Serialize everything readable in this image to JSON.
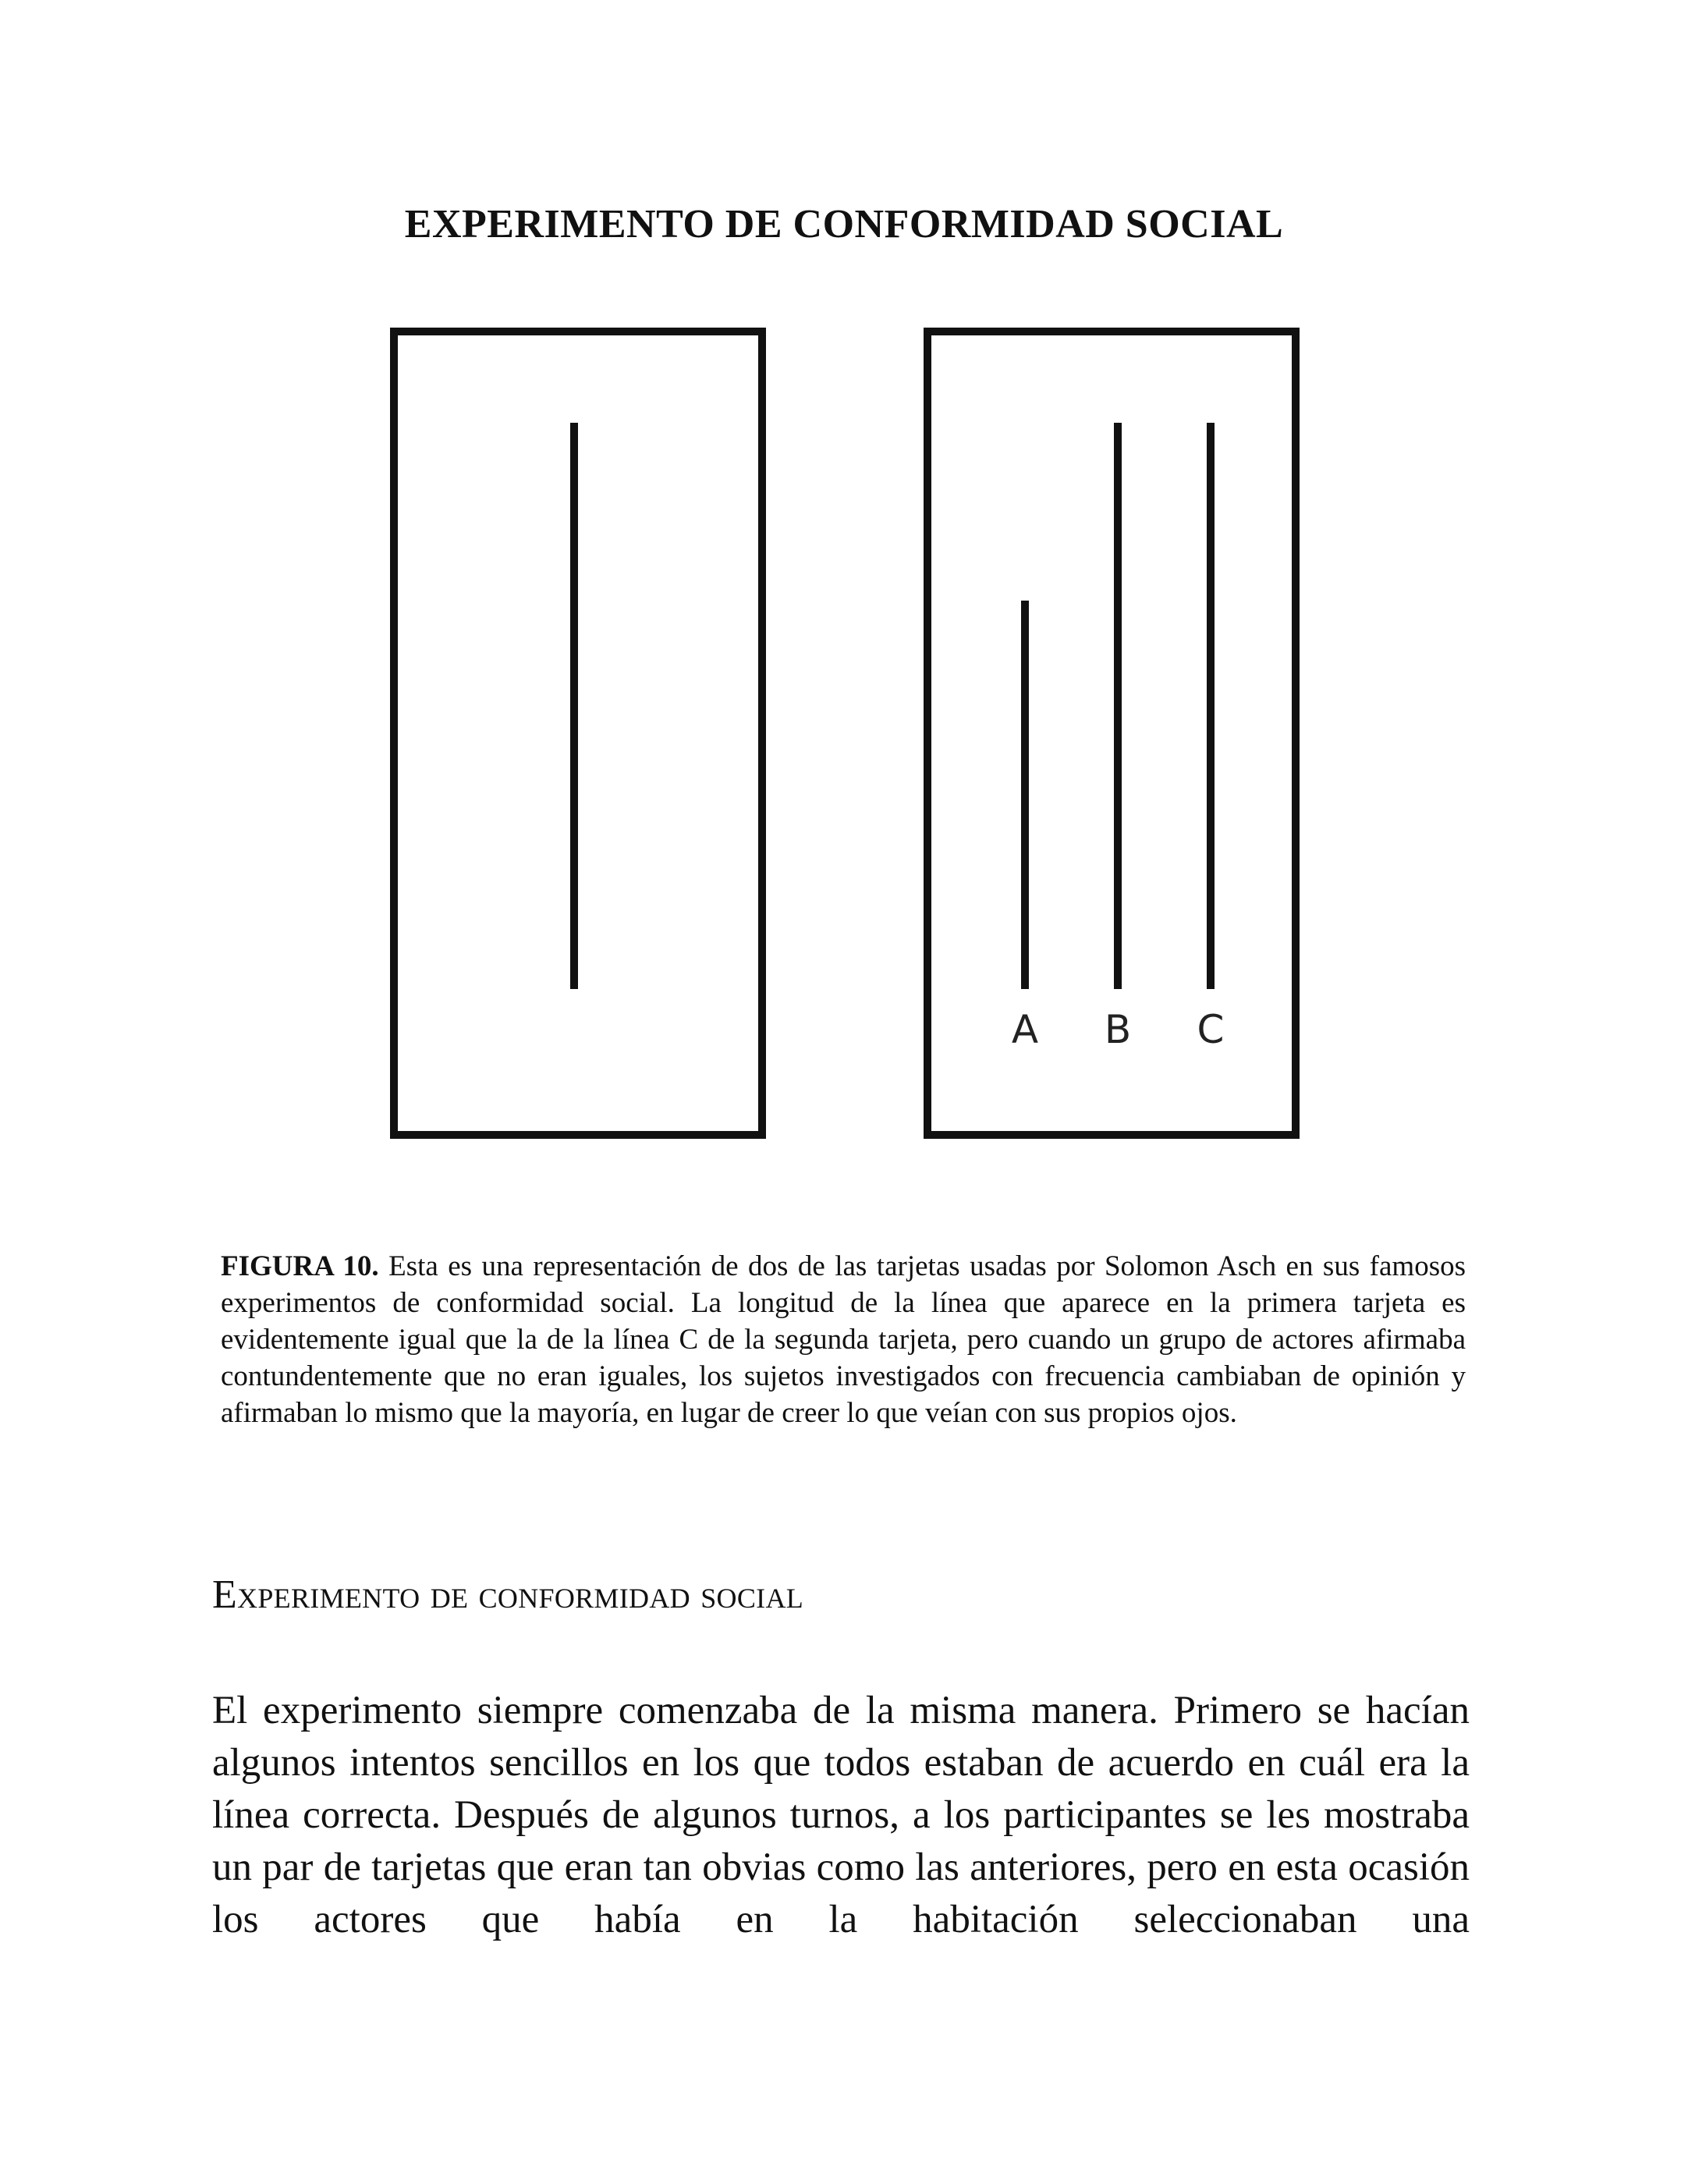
{
  "page": {
    "title": "EXPERIMENTO DE CONFORMIDAD SOCIAL"
  },
  "figure": {
    "line_labels": {
      "a": "A",
      "b": "B",
      "c": "C"
    }
  },
  "caption": {
    "label": "FIGURA 10.",
    "text": "Esta es una representación de dos de las tarjetas usadas por Solomon Asch en sus famosos experimentos de conformidad social. La longitud de la línea que aparece en la primera tarjeta es evidentemente igual que la de la línea C de la segunda tarjeta, pero cuando un grupo de actores afirmaba contundentemente que no eran iguales, los sujetos investigados con frecuencia cambiaban de opinión y afirmaban lo mismo que la mayoría, en lugar de creer lo que veían con sus propios ojos."
  },
  "section": {
    "heading": "Experimento de conformidad social",
    "body": "El experimento siempre comenzaba de la misma manera. Primero se hacían algunos intentos sencillos en los que todos estaban de acuerdo en cuál era la línea correcta. Después de algunos turnos, a los participantes se les mostraba un par de tarjetas que eran tan obvias como las anteriores, pero en esta ocasión los actores que había en la habitación seleccionaban una"
  }
}
